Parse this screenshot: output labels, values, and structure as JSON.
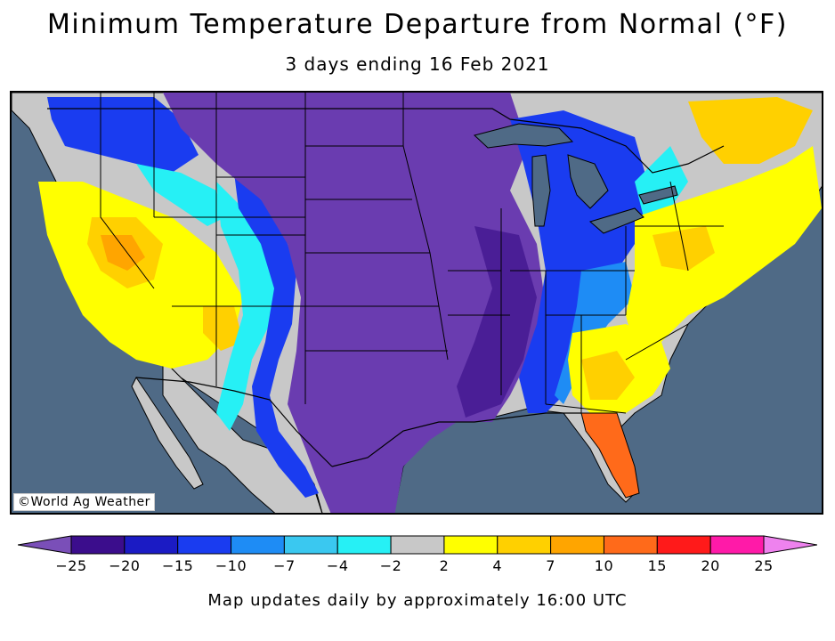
{
  "title": "Minimum Temperature Departure from Normal (°F)",
  "subtitle": "3 days ending 16 Feb 2021",
  "credit": "©World Ag Weather",
  "footer": "Map updates daily by approximately 16:00 UTC",
  "legend": {
    "ticks": [
      "−25",
      "−20",
      "−15",
      "−10",
      "−7",
      "−4",
      "−2",
      "2",
      "4",
      "7",
      "10",
      "15",
      "20",
      "25"
    ],
    "colors": [
      "#7a4fb8",
      "#3b0d8c",
      "#1b1bc4",
      "#1a3cf0",
      "#1e8cf5",
      "#3ac8f0",
      "#26f0f5",
      "#c8c8c8",
      "#ffff00",
      "#ffd000",
      "#ffa500",
      "#ff6a1a",
      "#ff1a1a",
      "#ff1aa8",
      "#ee82ee"
    ]
  },
  "colors": {
    "ocean": "#4f6a86",
    "lakes": "#4f6a86",
    "purple": "#6a3cb0",
    "dark_purple": "#4a1e96",
    "blue": "#1a3cf0",
    "mid_blue": "#1e8cf5",
    "cyan": "#26f0f5",
    "gray": "#c8c8c8",
    "yellow": "#ffff00",
    "gold": "#ffd000",
    "orange": "#ffa500",
    "red_orange": "#ff6a1a"
  }
}
